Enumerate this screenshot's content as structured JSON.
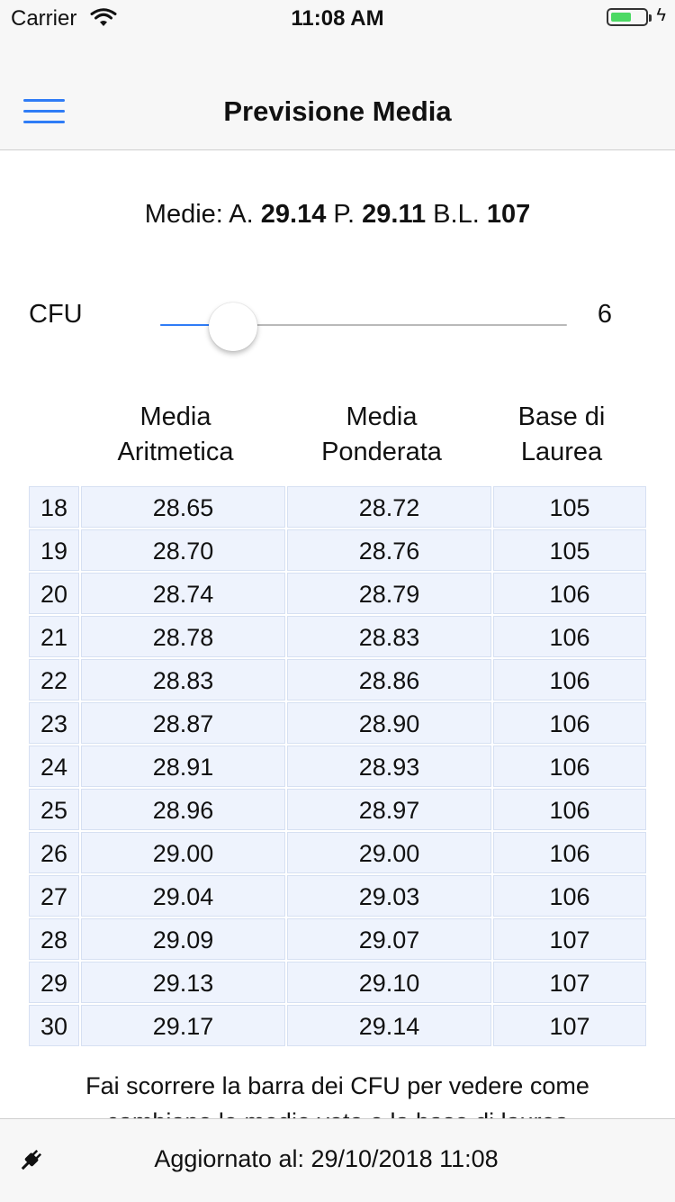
{
  "status_bar": {
    "carrier": "Carrier",
    "time": "11:08 AM",
    "battery_level_percent": 60
  },
  "nav": {
    "title": "Previsione Media"
  },
  "summary": {
    "prefix": "Medie: ",
    "a_label": "A. ",
    "a_value": "29.14",
    "p_label": " P. ",
    "p_value": "29.11",
    "bl_label": " B.L. ",
    "bl_value": "107"
  },
  "slider": {
    "label": "CFU",
    "value": "6",
    "position_fraction": 0.18
  },
  "table": {
    "headers": [
      {
        "line1": "Media",
        "line2": "Aritmetica"
      },
      {
        "line1": "Media",
        "line2": "Ponderata"
      },
      {
        "line1": "Base di",
        "line2": "Laurea"
      }
    ],
    "rows": [
      [
        "18",
        "28.65",
        "28.72",
        "105"
      ],
      [
        "19",
        "28.70",
        "28.76",
        "105"
      ],
      [
        "20",
        "28.74",
        "28.79",
        "106"
      ],
      [
        "21",
        "28.78",
        "28.83",
        "106"
      ],
      [
        "22",
        "28.83",
        "28.86",
        "106"
      ],
      [
        "23",
        "28.87",
        "28.90",
        "106"
      ],
      [
        "24",
        "28.91",
        "28.93",
        "106"
      ],
      [
        "25",
        "28.96",
        "28.97",
        "106"
      ],
      [
        "26",
        "29.00",
        "29.00",
        "106"
      ],
      [
        "27",
        "29.04",
        "29.03",
        "106"
      ],
      [
        "28",
        "29.09",
        "29.07",
        "107"
      ],
      [
        "29",
        "29.13",
        "29.10",
        "107"
      ],
      [
        "30",
        "29.17",
        "29.14",
        "107"
      ]
    ]
  },
  "hint": {
    "text": "Fai scorrere la barra dei CFU per vedere come cambiano le medie voto e la base di laurea"
  },
  "footer": {
    "updated_text": "Aggiornato al: 29/10/2018 11:08"
  },
  "colors": {
    "accent": "#2f7cf6",
    "cell_bg": "#eef3fd",
    "bar_bg": "#f7f7f7"
  },
  "icons": {
    "menu": "hamburger-menu-icon",
    "plug": "plug-icon",
    "wifi": "wifi-icon",
    "battery": "battery-icon"
  }
}
